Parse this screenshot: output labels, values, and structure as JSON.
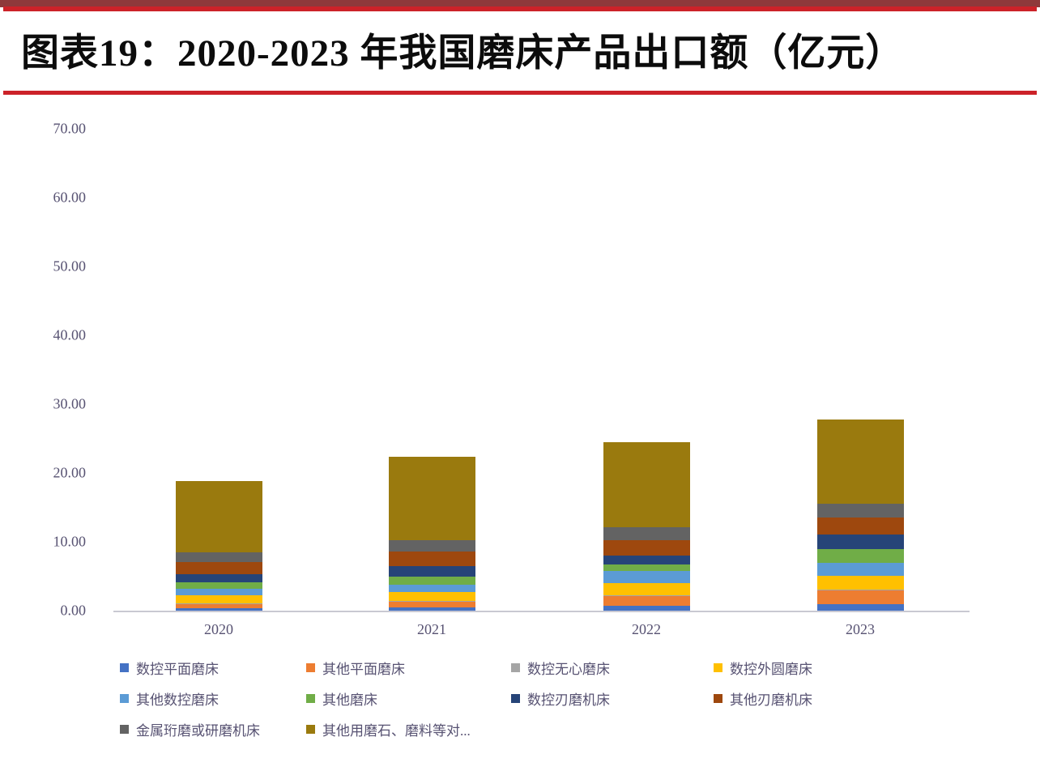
{
  "header": {
    "title": "图表19：2020-2023 年我国磨床产品出口额（亿元）"
  },
  "colors": {
    "top_rule": "#cc2229",
    "bottom_rule": "#8e393b",
    "axis_text": "#575272",
    "axis_line": "#c9c9d2",
    "background": "#ffffff",
    "title_text": "#0c0c0c"
  },
  "chart_data": {
    "type": "bar",
    "stacked": true,
    "title": "图表19：2020-2023 年我国磨床产品出口额（亿元）",
    "xlabel": "",
    "ylabel": "",
    "categories": [
      "2020",
      "2021",
      "2022",
      "2023"
    ],
    "series": [
      {
        "name": "数控平面磨床",
        "color": "#4472C4",
        "values": [
          0.3,
          0.5,
          0.7,
          0.9
        ]
      },
      {
        "name": "其他平面磨床",
        "color": "#ED7D31",
        "values": [
          0.7,
          0.9,
          1.5,
          2.1
        ]
      },
      {
        "name": "数控无心磨床",
        "color": "#A5A5A5",
        "values": [
          0.05,
          0.05,
          0.05,
          0.05
        ]
      },
      {
        "name": "数控外圆磨床",
        "color": "#FFC000",
        "values": [
          1.2,
          1.2,
          1.7,
          2.0
        ]
      },
      {
        "name": "其他数控磨床",
        "color": "#5B9BD5",
        "values": [
          0.9,
          1.1,
          1.8,
          1.9
        ]
      },
      {
        "name": "其他磨床",
        "color": "#70AD47",
        "values": [
          1.0,
          1.2,
          1.0,
          2.0
        ]
      },
      {
        "name": "数控刃磨机床",
        "color": "#264478",
        "values": [
          1.1,
          1.5,
          1.2,
          2.1
        ]
      },
      {
        "name": "其他刃磨机床",
        "color": "#9E480E",
        "values": [
          1.8,
          2.1,
          2.3,
          2.5
        ]
      },
      {
        "name": "金属珩磨或研磨机床",
        "color": "#636363",
        "values": [
          1.4,
          1.7,
          1.9,
          2.0
        ]
      },
      {
        "name": "其他用磨石、磨料等对...",
        "color": "#9A7A0E",
        "values": [
          10.4,
          12.1,
          12.3,
          12.2
        ]
      }
    ],
    "totals": [
      18.85,
      22.35,
      24.45,
      27.75
    ],
    "ylim": [
      0,
      70
    ],
    "ytick_step": 10,
    "ytick_labels": [
      "0.00",
      "10.00",
      "20.00",
      "30.00",
      "40.00",
      "50.00",
      "60.00",
      "70.00"
    ],
    "grid": false,
    "legend_position": "bottom"
  }
}
